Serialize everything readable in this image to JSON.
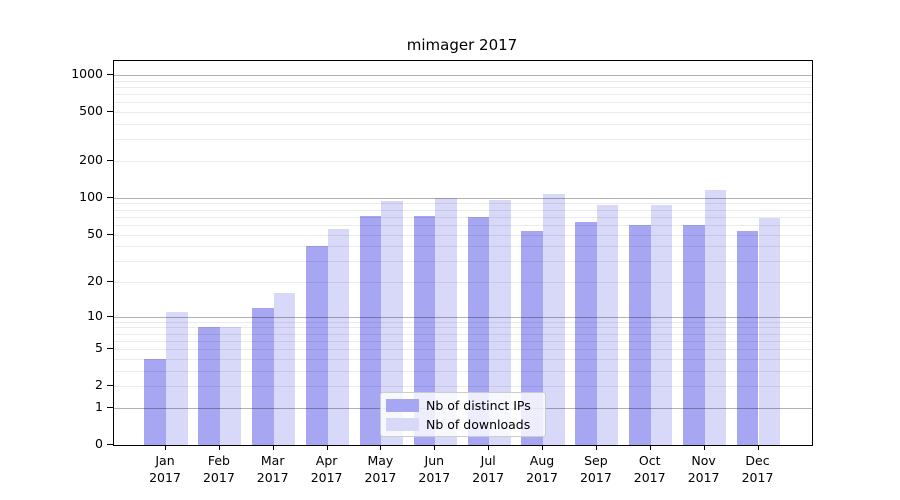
{
  "chart_data": {
    "type": "bar",
    "title": "mimager 2017",
    "x_tick_year": "2017",
    "categories": [
      "Jan",
      "Feb",
      "Mar",
      "Apr",
      "May",
      "Jun",
      "Jul",
      "Aug",
      "Sep",
      "Oct",
      "Nov",
      "Dec"
    ],
    "series": [
      {
        "name": "Nb of distinct IPs",
        "color": "#a6a6f2",
        "values": [
          4,
          8,
          12,
          40,
          71,
          71,
          70,
          53,
          63,
          60,
          60,
          53
        ]
      },
      {
        "name": "Nb of downloads",
        "color": "#d8d8f9",
        "values": [
          11,
          8,
          16,
          56,
          95,
          100,
          96,
          108,
          88,
          87,
          117,
          69
        ]
      }
    ],
    "xlabel": "",
    "ylabel": "",
    "y_scale": "log10(value+1), 0 at baseline",
    "ylim": [
      0,
      1300
    ],
    "y_ticks": [
      0,
      1,
      2,
      5,
      10,
      20,
      50,
      100,
      200,
      500,
      1000
    ],
    "grid": "horizontal, major lines at 1/10/100/1000, faint minor lines at 2-9 of each decade",
    "legend_position": "lower center, semi-transparent box over bars",
    "colors": {
      "major_grid": "rgba(0,0,0,0.30)",
      "minor_grid": "rgba(0,0,0,0.08)",
      "spine": "#000000",
      "background": "#ffffff"
    }
  }
}
